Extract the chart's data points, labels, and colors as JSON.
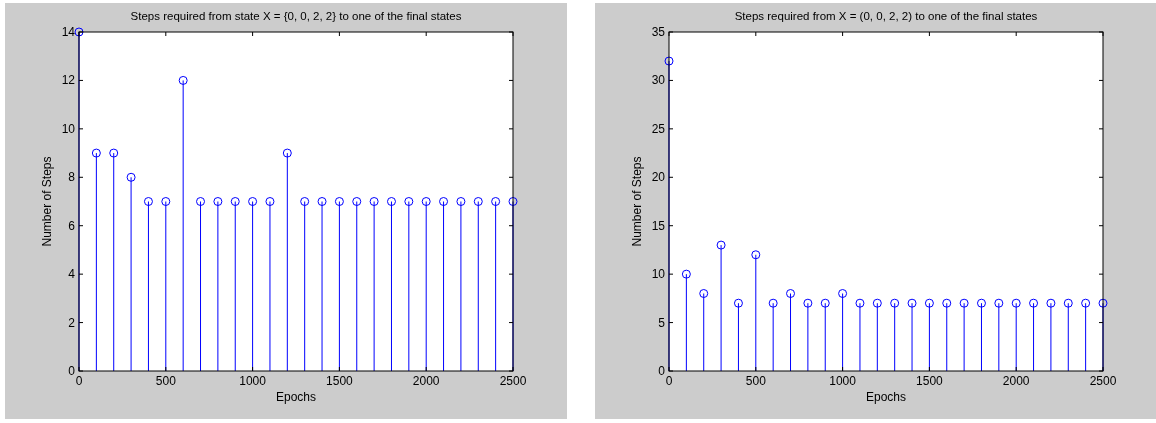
{
  "chart_data": [
    {
      "type": "lollipop",
      "title": "Steps required from state X = {0, 0, 2, 2} to one of the final states",
      "xlabel": "Epochs",
      "ylabel": "Number of Steps",
      "marker": "circle",
      "color": "#0000ff",
      "x": [
        0,
        100,
        200,
        300,
        400,
        500,
        600,
        700,
        800,
        900,
        1000,
        1100,
        1200,
        1300,
        1400,
        1500,
        1600,
        1700,
        1800,
        1900,
        2000,
        2100,
        2200,
        2300,
        2400,
        2500
      ],
      "values": [
        14,
        9,
        9,
        8,
        7,
        7,
        12,
        7,
        7,
        7,
        7,
        7,
        9,
        7,
        7,
        7,
        7,
        7,
        7,
        7,
        7,
        7,
        7,
        7,
        7,
        7
      ],
      "xlim": [
        0,
        2500
      ],
      "xticks": [
        0,
        500,
        1000,
        1500,
        2000,
        2500
      ],
      "ylim": [
        0,
        14
      ],
      "yticks": [
        0,
        2,
        4,
        6,
        8,
        10,
        12,
        14
      ]
    },
    {
      "type": "lollipop",
      "title": "Steps required from X = (0, 0, 2, 2) to one of the final states",
      "xlabel": "Epochs",
      "ylabel": "Number of Steps",
      "marker": "circle",
      "color": "#0000ff",
      "x": [
        0,
        100,
        200,
        300,
        400,
        500,
        600,
        700,
        800,
        900,
        1000,
        1100,
        1200,
        1300,
        1400,
        1500,
        1600,
        1700,
        1800,
        1900,
        2000,
        2100,
        2200,
        2300,
        2400,
        2500
      ],
      "values": [
        32,
        10,
        8,
        13,
        7,
        12,
        7,
        8,
        7,
        7,
        8,
        7,
        7,
        7,
        7,
        7,
        7,
        7,
        7,
        7,
        7,
        7,
        7,
        7,
        7,
        7
      ],
      "xlim": [
        0,
        2500
      ],
      "xticks": [
        0,
        500,
        1000,
        1500,
        2000,
        2500
      ],
      "ylim": [
        0,
        35
      ],
      "yticks": [
        0,
        5,
        10,
        15,
        20,
        25,
        30,
        35
      ]
    }
  ]
}
